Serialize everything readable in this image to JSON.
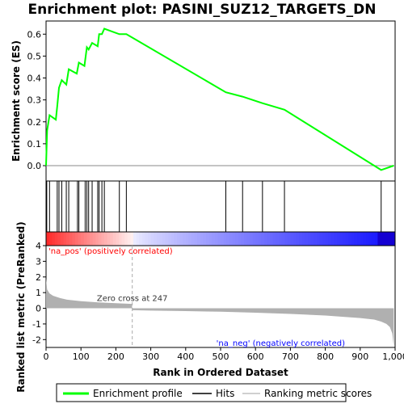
{
  "chart_data": {
    "type": "line",
    "title": "Enrichment plot: PASINI_SUZ12_TARGETS_DN",
    "xlabel": "Rank in Ordered Dataset",
    "es_panel": {
      "ylabel": "Enrichment score (ES)",
      "ylim": [
        -0.07,
        0.66
      ],
      "yticks": [
        "0.0",
        "0.1",
        "0.2",
        "0.3",
        "0.4",
        "0.5",
        "0.6"
      ],
      "ytick_values": [
        0.0,
        0.1,
        0.2,
        0.3,
        0.4,
        0.5,
        0.6
      ],
      "series": [
        {
          "name": "Enrichment profile",
          "color": "#00ff00",
          "x": [
            0,
            3,
            10,
            28,
            32,
            37,
            45,
            58,
            65,
            88,
            94,
            110,
            117,
            122,
            132,
            148,
            152,
            160,
            167,
            210,
            230,
            515,
            563,
            620,
            683,
            960,
            996
          ],
          "y": [
            0.0,
            0.16,
            0.23,
            0.21,
            0.27,
            0.355,
            0.39,
            0.37,
            0.44,
            0.42,
            0.47,
            0.455,
            0.54,
            0.53,
            0.56,
            0.545,
            0.6,
            0.6,
            0.625,
            0.6,
            0.6,
            0.335,
            0.315,
            0.285,
            0.255,
            -0.02,
            0.0
          ]
        }
      ]
    },
    "hits": [
      2,
      10,
      32,
      37,
      45,
      58,
      65,
      90,
      94,
      112,
      117,
      122,
      132,
      148,
      152,
      160,
      167,
      210,
      230,
      515,
      563,
      620,
      683,
      960
    ],
    "metric_panel": {
      "ylabel": "Ranked list metric (PreRanked)",
      "ylim": [
        -2.5,
        4
      ],
      "yticks": [
        "-2",
        "-1",
        "0",
        "1",
        "2",
        "3",
        "4"
      ],
      "ytick_values": [
        -2,
        -1,
        0,
        1,
        2,
        3,
        4
      ],
      "xticks": [
        "0",
        "100",
        "200",
        "300",
        "400",
        "500",
        "600",
        "700",
        "800",
        "900",
        "1,000"
      ],
      "xtick_values": [
        0,
        100,
        200,
        300,
        400,
        500,
        600,
        700,
        800,
        900,
        1000
      ],
      "xlim": [
        0,
        1000
      ],
      "zero_cross_rank": 247,
      "zero_cross_label": "Zero cross at 247",
      "pos_label": "'na_pos' (positively correlated)",
      "neg_label": "'na_neg' (negatively correlated)",
      "pos_color": "#ff0000",
      "neg_color": "#0000ff",
      "profile_x": [
        0,
        3,
        10,
        20,
        40,
        60,
        100,
        150,
        200,
        246,
        247,
        300,
        400,
        500,
        600,
        700,
        800,
        900,
        940,
        960,
        975,
        985,
        992,
        996
      ],
      "profile_y": [
        1.9,
        1.2,
        0.95,
        0.8,
        0.65,
        0.55,
        0.45,
        0.38,
        0.32,
        0.28,
        -0.12,
        -0.15,
        -0.18,
        -0.22,
        -0.28,
        -0.36,
        -0.46,
        -0.62,
        -0.72,
        -0.85,
        -1.0,
        -1.2,
        -1.6,
        -2.4
      ]
    },
    "legend": {
      "placement": "bottom",
      "entries": [
        {
          "label": "Enrichment profile",
          "color": "#00ff00"
        },
        {
          "label": "Hits",
          "color": "#000000"
        },
        {
          "label": "Ranking metric scores",
          "color": "#c0c0c0"
        }
      ]
    }
  }
}
